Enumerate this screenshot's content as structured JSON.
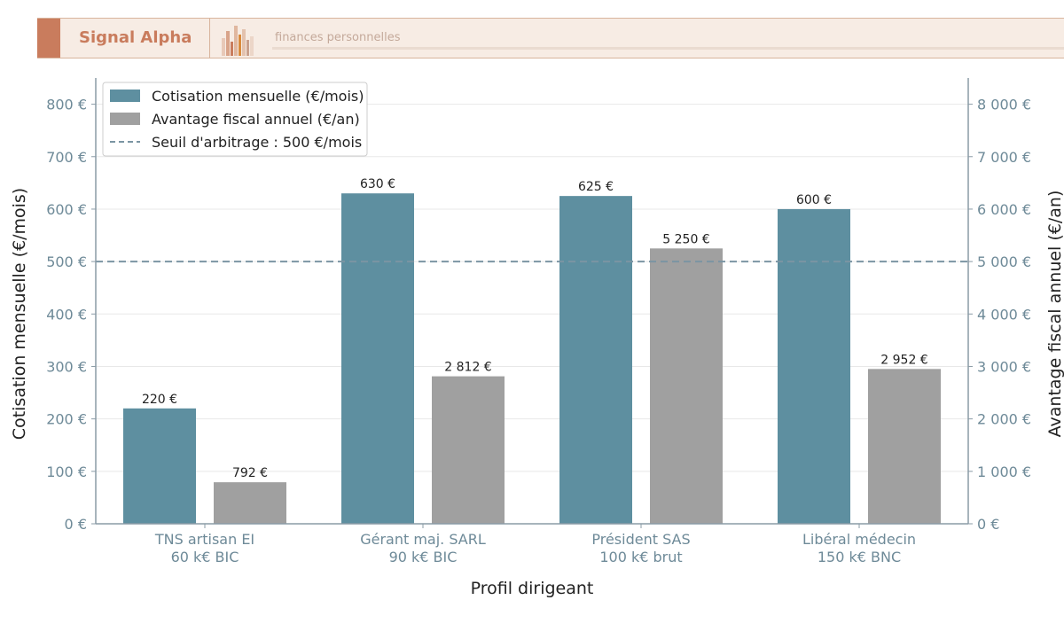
{
  "header": {
    "brand": "Signal Alpha",
    "tagline": "finances personnelles",
    "logo_icon": "city-bars-logo-icon"
  },
  "chart_data": {
    "type": "bar",
    "categories": [
      [
        "TNS artisan EI",
        "60 k€ BIC"
      ],
      [
        "Gérant maj. SARL",
        "90 k€ BIC"
      ],
      [
        "Président SAS",
        "100 k€ brut"
      ],
      [
        "Libéral médecin",
        "150 k€ BNC"
      ]
    ],
    "series": [
      {
        "name": "Cotisation mensuelle (€/mois)",
        "axis": "left",
        "values": [
          220,
          630,
          625,
          600
        ],
        "labels": [
          "220 €",
          "630 €",
          "625 €",
          "600 €"
        ],
        "color": "#5e8fa0"
      },
      {
        "name": "Avantage fiscal annuel (€/an)",
        "axis": "right",
        "values": [
          792,
          2812,
          5250,
          2952
        ],
        "labels": [
          "792 €",
          "2 812 €",
          "5 250 €",
          "2 952 €"
        ],
        "color": "#a0a0a0"
      }
    ],
    "reference_line": {
      "name": "Seuil d'arbitrage : 500 €/mois",
      "value": 500,
      "axis": "left",
      "color": "#7b95a3"
    },
    "xlabel": "Profil dirigeant",
    "ylabel_left": "Cotisation mensuelle (€/mois)",
    "ylabel_right": "Avantage fiscal annuel (€/an)",
    "ylim_left": [
      0,
      850
    ],
    "ylim_right": [
      0,
      8500
    ],
    "yticks_left": [
      0,
      100,
      200,
      300,
      400,
      500,
      600,
      700,
      800
    ],
    "yticks_left_labels": [
      "0 €",
      "100 €",
      "200 €",
      "300 €",
      "400 €",
      "500 €",
      "600 €",
      "700 €",
      "800 €"
    ],
    "yticks_right": [
      0,
      1000,
      2000,
      3000,
      4000,
      5000,
      6000,
      7000,
      8000
    ],
    "yticks_right_labels": [
      "0 €",
      "1 000 €",
      "2 000 €",
      "3 000 €",
      "4 000 €",
      "5 000 €",
      "6 000 €",
      "7 000 €",
      "8 000 €"
    ],
    "grid": true,
    "legend_position": "top-left"
  }
}
